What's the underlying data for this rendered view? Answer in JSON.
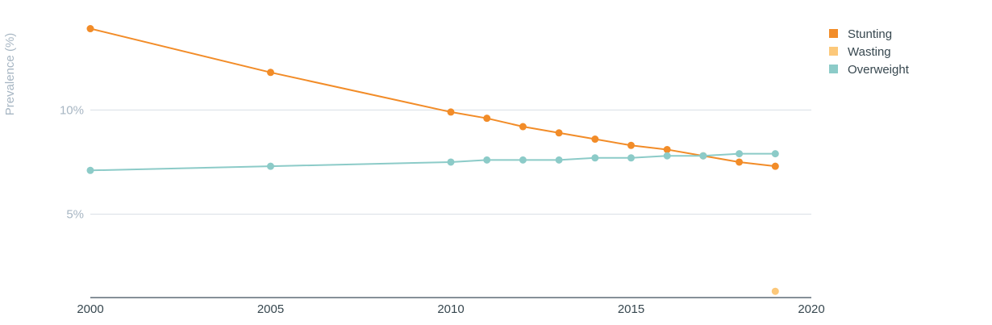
{
  "chart_data": {
    "type": "line",
    "title": "",
    "xlabel": "",
    "ylabel": "Prevalence (%)",
    "xlim": [
      2000,
      2020
    ],
    "ylim": [
      1,
      14.5
    ],
    "x_ticks": [
      2000,
      2005,
      2010,
      2015,
      2020
    ],
    "x_tick_labels": [
      "2000",
      "2005",
      "2010",
      "2015",
      "2020"
    ],
    "y_ticks": [
      5,
      10
    ],
    "y_tick_labels": [
      "5%",
      "10%"
    ],
    "grid": true,
    "legend": "top-right",
    "series": [
      {
        "name": "Stunting",
        "color": "#f28c28",
        "points": [
          [
            2000,
            13.9
          ],
          [
            2005,
            11.8
          ],
          [
            2010,
            9.9
          ],
          [
            2011,
            9.6
          ],
          [
            2012,
            9.2
          ],
          [
            2013,
            8.9
          ],
          [
            2014,
            8.6
          ],
          [
            2015,
            8.3
          ],
          [
            2016,
            8.1
          ],
          [
            2017,
            7.8
          ],
          [
            2018,
            7.5
          ],
          [
            2019,
            7.3
          ]
        ]
      },
      {
        "name": "Wasting",
        "color": "#fcc87a",
        "points": [
          [
            2019,
            1.3
          ]
        ]
      },
      {
        "name": "Overweight",
        "color": "#8ccbc8",
        "points": [
          [
            2000,
            7.1
          ],
          [
            2005,
            7.3
          ],
          [
            2010,
            7.5
          ],
          [
            2011,
            7.6
          ],
          [
            2012,
            7.6
          ],
          [
            2013,
            7.6
          ],
          [
            2014,
            7.7
          ],
          [
            2015,
            7.7
          ],
          [
            2016,
            7.8
          ],
          [
            2017,
            7.8
          ],
          [
            2018,
            7.9
          ],
          [
            2019,
            7.9
          ]
        ]
      }
    ]
  }
}
